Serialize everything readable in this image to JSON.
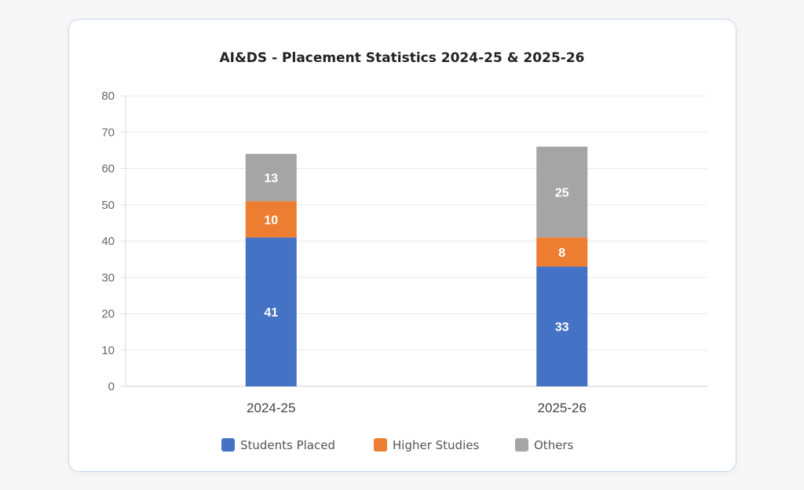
{
  "chart_data": {
    "type": "bar",
    "stacked": true,
    "title": "AI&DS - Placement Statistics 2024-25 & 2025-26",
    "categories": [
      "2024-25",
      "2025-26"
    ],
    "series": [
      {
        "name": "Students Placed",
        "values": [
          41,
          33
        ],
        "color": "#4472c4"
      },
      {
        "name": "Higher Studies",
        "values": [
          10,
          8
        ],
        "color": "#ed7d31"
      },
      {
        "name": "Others",
        "values": [
          13,
          25
        ],
        "color": "#a5a5a5"
      }
    ],
    "ylim": [
      0,
      80
    ],
    "yticks": [
      0,
      10,
      20,
      30,
      40,
      50,
      60,
      70,
      80
    ],
    "xlabel": "",
    "ylabel": "",
    "grid": true,
    "legend": "bottom"
  }
}
